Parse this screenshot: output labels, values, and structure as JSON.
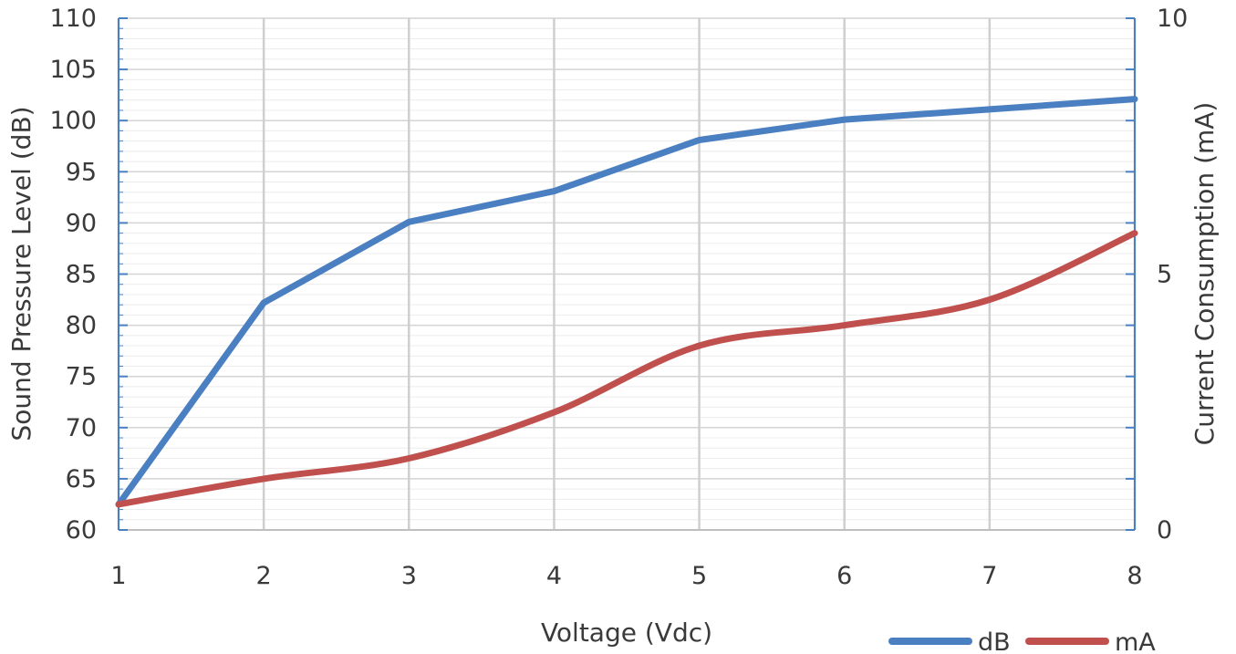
{
  "chart_data": {
    "type": "line",
    "x": [
      1,
      2,
      3,
      4,
      5,
      6,
      7,
      8
    ],
    "xlabel": "Voltage (Vdc)",
    "ylabel_left": "Sound Pressure Level (dB)",
    "ylabel_right": "Current Consumption (mA)",
    "ylim_left": [
      60,
      110
    ],
    "ylim_right": [
      0,
      10
    ],
    "xlim": [
      1,
      8
    ],
    "yticks_left": [
      60,
      65,
      70,
      75,
      80,
      85,
      90,
      95,
      100,
      105,
      110
    ],
    "yticks_right": [
      0,
      5,
      10
    ],
    "xticks": [
      1,
      2,
      3,
      4,
      5,
      6,
      7,
      8
    ],
    "grid": true,
    "legend_position": "bottom-right",
    "series": [
      {
        "name": "dB",
        "axis": "left",
        "color": "#4a7fc1",
        "values": [
          62.5,
          82.2,
          90.1,
          93.1,
          98.1,
          100.1,
          101.1,
          102.1
        ]
      },
      {
        "name": "mA",
        "axis": "right",
        "color": "#c0504d",
        "values": [
          0.5,
          1.0,
          1.4,
          2.3,
          3.6,
          4.0,
          4.5,
          5.8
        ]
      }
    ]
  }
}
